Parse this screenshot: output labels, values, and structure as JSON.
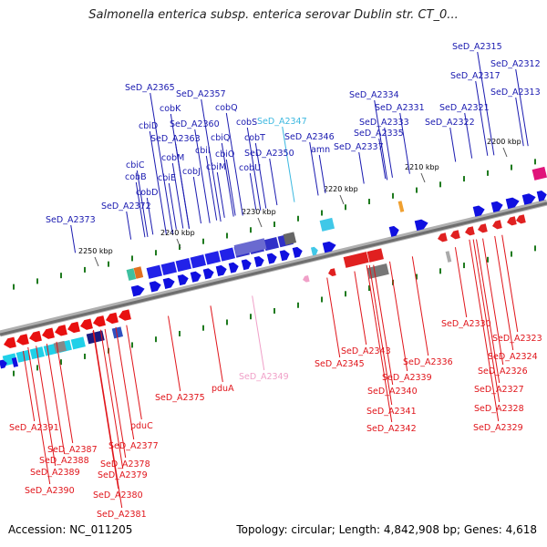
{
  "title": "Salmonella enterica subsp. enterica serovar Dublin str. CT_0...",
  "footer": {
    "accession": "Accession: NC_011205",
    "summary": "Topology: circular; Length: 4,842,908 bp; Genes: 4,618"
  },
  "colors": {
    "forward_label": "#1a1ab0",
    "reverse_label": "#e0141a",
    "highlight_forward_label": "#3cb8e0",
    "highlight_reverse_label": "#f0a0c8",
    "backbone": "#7a7a7a",
    "tick": "#1e7a1e"
  },
  "ticks": [
    "2200 kbp",
    "2210 kbp",
    "2220 kbp",
    "2230 kbp",
    "2240 kbp",
    "2250 kbp"
  ],
  "forward_genes": [
    "SeD_A2315",
    "SeD_A2312",
    "SeD_A2317",
    "SeD_A2313",
    "SeD_A2321",
    "SeD_A2322",
    "SeD_A2334",
    "SeD_A2331",
    "SeD_A2333",
    "SeD_A2335",
    "SeD_A2337",
    "amn",
    "SeD_A2346",
    "SeD_A2347",
    "cobS",
    "cobT",
    "cobU",
    "SeD_A2350",
    "cobQ",
    "SeD_A2357",
    "SeD_A2365",
    "cobK",
    "SeD_A2360",
    "cbiQ",
    "cbiD",
    "SeD_A2363",
    "cbiO",
    "cbiI",
    "cbiM",
    "cobM",
    "cobJ",
    "cbiC",
    "cbiE",
    "cobB",
    "cobD",
    "SeD_A2372",
    "SeD_A2373"
  ],
  "reverse_genes": [
    "SeD_A2330",
    "SeD_A2323",
    "SeD_A2324",
    "SeD_A2326",
    "SeD_A2327",
    "SeD_A2328",
    "SeD_A2329",
    "SeD_A2336",
    "SeD_A2343",
    "SeD_A2339",
    "SeD_A2340",
    "SeD_A2341",
    "SeD_A2342",
    "SeD_A2345",
    "SeD_A2349",
    "pduA",
    "SeD_A2375",
    "pduC",
    "SeD_A2377",
    "SeD_A2378",
    "SeD_A2379",
    "SeD_A2380",
    "SeD_A2381",
    "SeD_A2387",
    "SeD_A2388",
    "SeD_A2389",
    "SeD_A2390",
    "SeD_A2391"
  ]
}
